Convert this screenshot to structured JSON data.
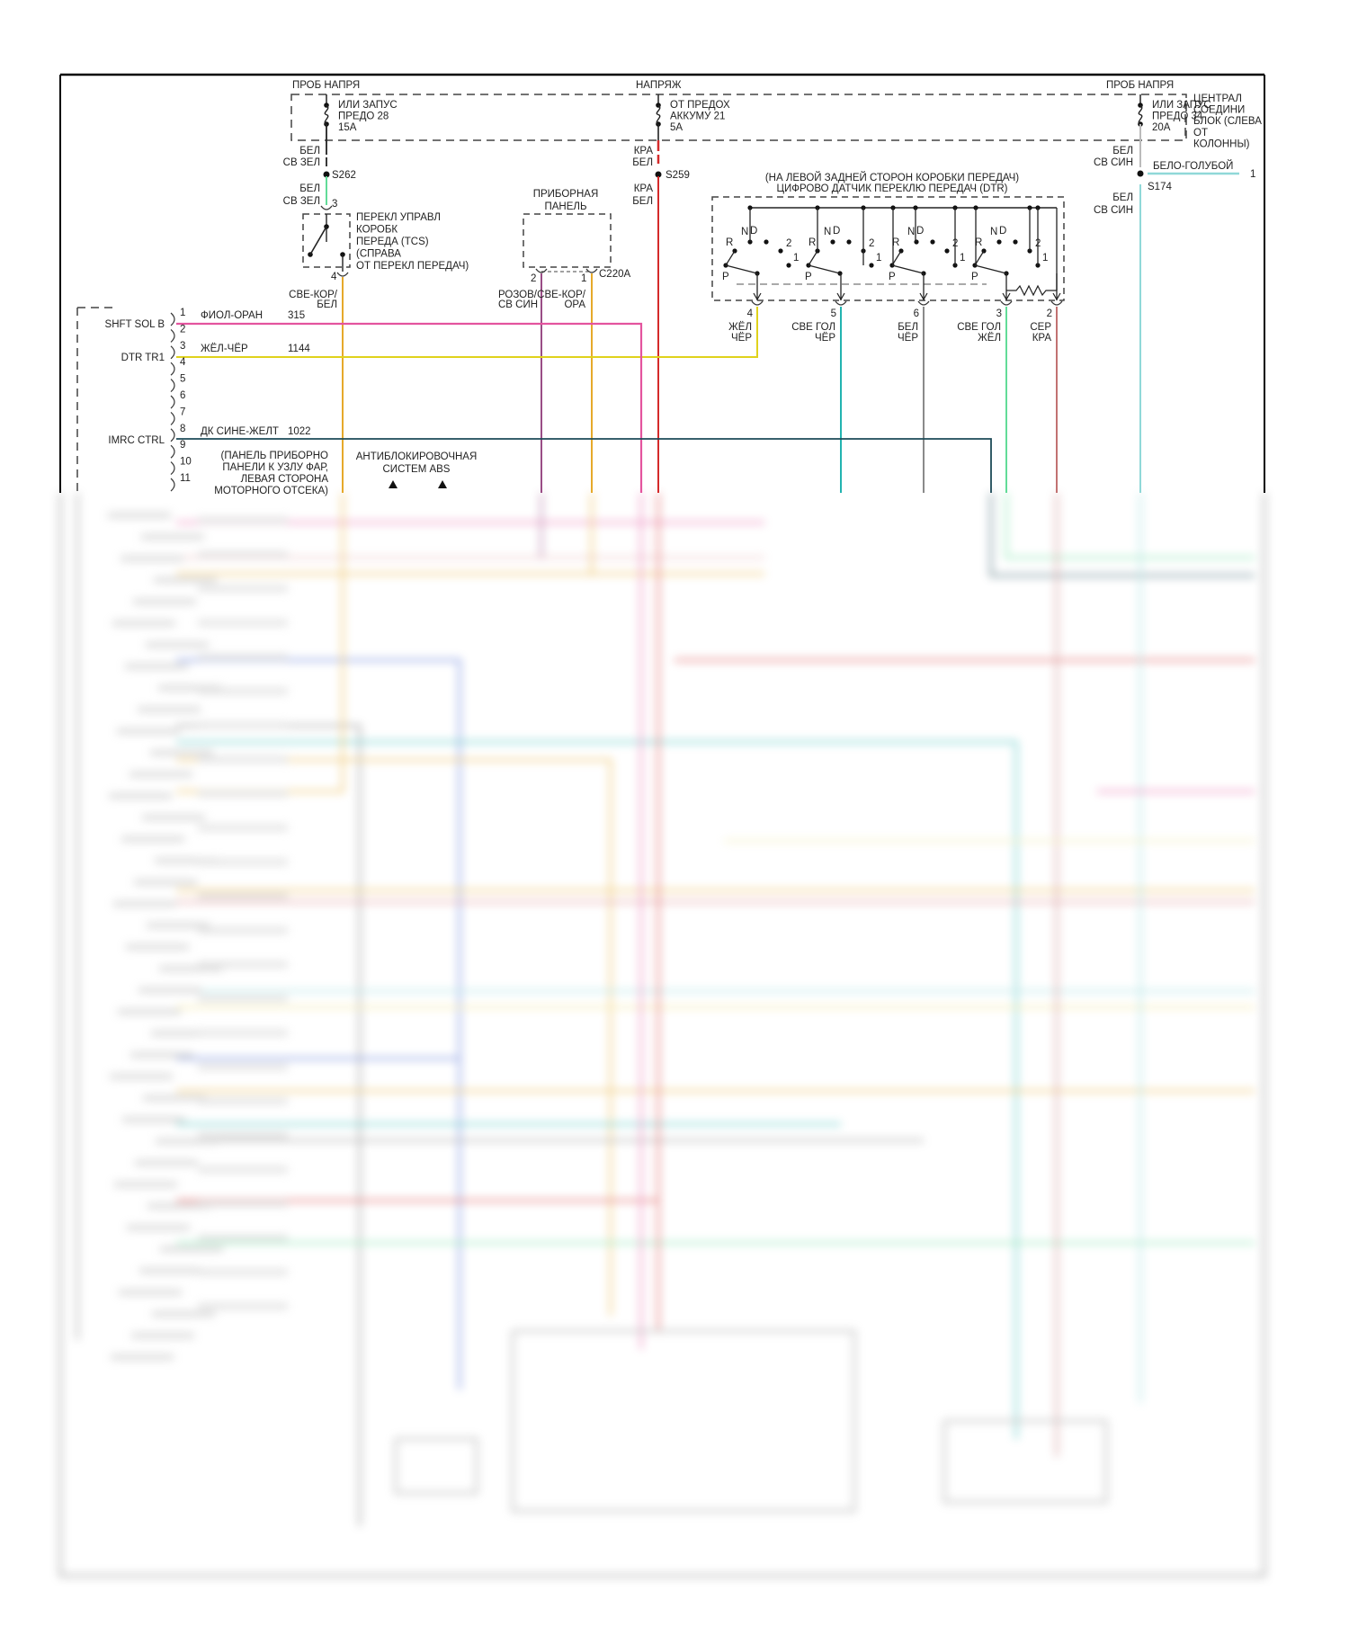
{
  "top": {
    "probe_left": "ПРОБ НАПРЯ",
    "voltage": "НАПРЯЖ",
    "probe_right": "ПРОБ НАПРЯ"
  },
  "fuses": [
    {
      "lines": [
        "ИЛИ ЗАПУС",
        "ПРЕДО 28",
        "15А"
      ]
    },
    {
      "lines": [
        "ОТ ПРЕДОХ",
        "АККУМУ 21",
        "5А"
      ]
    },
    {
      "lines": [
        "ИЛИ ЗАПУС",
        "ПРЕДО 34",
        "20А"
      ]
    }
  ],
  "central_block": [
    "ЦЕНТРАЛ",
    "СОЕДИНИ",
    "БЛОК (СЛЕВА",
    "ОТ",
    "КОЛОННЫ)"
  ],
  "splices": {
    "s262": "S262",
    "s259": "S259",
    "s174": "S174"
  },
  "wire_colors_text": {
    "bel": "БЕЛ",
    "sv_zel": "СВ ЗЕЛ",
    "kra": "КРА",
    "sv_sin": "СВ СИН",
    "sve_kor": "СВЕ-КОР/",
    "rozov": "РОЗОВ/",
    "ora": "ОРА",
    "belo_goluboy": "БЕЛО-ГОЛУБОЙ",
    "belo_goluboy_pin": "1"
  },
  "tcs": {
    "lines": [
      "ПЕРЕКЛ УПРАВЛ",
      "КОРОБК",
      "ПЕРЕДА (TCS)",
      "(СПРАВА",
      "ОТ ПЕРЕКЛ ПЕРЕДАЧ)"
    ],
    "pin_in": "3",
    "pin_out": "4"
  },
  "instrument_panel": {
    "lines": [
      "ПРИБОРНАЯ",
      "ПАНЕЛЬ"
    ],
    "connector": "C220A",
    "pin_a": "2",
    "pin_b": "1"
  },
  "dtr": {
    "title": [
      "(НА ЛЕВОЙ ЗАДНЕЙ СТОРОН КОРОБКИ ПЕРЕДАЧ)",
      "ЦИФРОВО ДАТЧИК ПЕРЕКЛЮ ПЕРЕДАЧ (DTR)"
    ],
    "positions": [
      "R",
      "N",
      "D",
      "2",
      "1",
      "P"
    ],
    "pins": [
      {
        "num": "4",
        "c1": "ЖЁЛ",
        "c2": "ЧЁР"
      },
      {
        "num": "5",
        "c1": "СВЕ ГОЛ",
        "c2": "ЧЁР"
      },
      {
        "num": "6",
        "c1": "БЕЛ",
        "c2": "ЧЁР"
      },
      {
        "num": "3",
        "c1": "СВЕ ГОЛ",
        "c2": "ЖЁЛ"
      },
      {
        "num": "2",
        "c1": "СЕР",
        "c2": "КРА"
      }
    ]
  },
  "pcm_connector": {
    "pins": [
      "1",
      "2",
      "3",
      "4",
      "5",
      "6",
      "7",
      "8",
      "9",
      "10",
      "11"
    ],
    "signals": [
      {
        "name": "SHFT SOL B",
        "wire": "ФИОЛ-ОРАН",
        "circuit": "315"
      },
      {
        "name": "DTR TR1",
        "wire": "ЖЁЛ-ЧЁР",
        "circuit": "1144"
      },
      {
        "name": "IMRC CTRL",
        "wire": "ДК СИНЕ-ЖЕЛТ",
        "circuit": "1022"
      }
    ]
  },
  "notes": {
    "panel_harness": [
      "(ПАНЕЛЬ ПРИБОРНО",
      "ПАНЕЛИ К УЗЛУ ФАР,",
      "ЛЕВАЯ СТОРОНА",
      "МОТОРНОГО ОТСЕКА)"
    ],
    "abs": [
      "АНТИБЛОКИРОВОЧНАЯ",
      "СИСТЕМ ABS"
    ]
  },
  "colors": {
    "pink": "#e4549e",
    "yellow": "#e0d21c",
    "orange": "#e6a92a",
    "purple": "#9a4d86",
    "red": "#d42a2a",
    "teal": "#22b3b0",
    "gray": "#8a8a8a",
    "green": "#62dc98",
    "rose": "#c27272",
    "light_blue": "#90d8d8",
    "dark_blue": "#1d4a58",
    "blue": "#3e5fd0"
  }
}
